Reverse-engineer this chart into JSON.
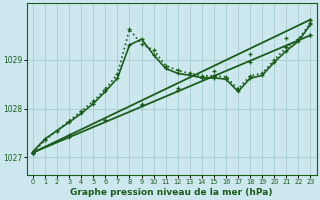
{
  "xlabel": "Graphe pression niveau de la mer (hPa)",
  "bg_color": "#cce8ee",
  "line_color": "#1a5c1a",
  "grid_color": "#a0c8c8",
  "ylim": [
    1026.65,
    1030.15
  ],
  "xlim": [
    -0.5,
    23.5
  ],
  "yticks": [
    1027,
    1028,
    1029
  ],
  "xticks": [
    0,
    1,
    2,
    3,
    4,
    5,
    6,
    7,
    8,
    9,
    10,
    11,
    12,
    13,
    14,
    15,
    16,
    17,
    18,
    19,
    20,
    21,
    22,
    23
  ],
  "series": [
    {
      "x": [
        0,
        1,
        2,
        3,
        4,
        5,
        6,
        7,
        8,
        9,
        10,
        11,
        12,
        13,
        14,
        15,
        16,
        17,
        18,
        19,
        20,
        21,
        22,
        23
      ],
      "y": [
        1027.1,
        1027.35,
        1027.55,
        1027.75,
        1027.95,
        1028.15,
        1028.4,
        1028.7,
        1029.62,
        1029.32,
        1029.2,
        1028.88,
        1028.78,
        1028.72,
        1028.67,
        1028.67,
        1028.65,
        1028.4,
        1028.67,
        1028.72,
        1029.0,
        1029.25,
        1029.42,
        1029.75
      ],
      "linestyle": "dotted",
      "linewidth": 1.2
    },
    {
      "x": [
        0,
        1,
        2,
        3,
        4,
        5,
        6,
        7,
        8,
        9,
        10,
        11,
        12,
        13,
        14,
        15,
        16,
        17,
        18,
        19,
        20,
        21,
        22,
        23
      ],
      "y": [
        1027.12,
        1027.38,
        1027.55,
        1027.72,
        1027.9,
        1028.1,
        1028.35,
        1028.62,
        1029.3,
        1029.42,
        1029.1,
        1028.82,
        1028.72,
        1028.68,
        1028.63,
        1028.63,
        1028.6,
        1028.35,
        1028.62,
        1028.68,
        1028.95,
        1029.18,
        1029.38,
        1029.72
      ],
      "linestyle": "solid",
      "linewidth": 1.2
    },
    {
      "x": [
        0,
        23
      ],
      "y": [
        1027.1,
        1029.82
      ],
      "linestyle": "solid",
      "linewidth": 1.3
    },
    {
      "x": [
        0,
        23
      ],
      "y": [
        1027.1,
        1029.5
      ],
      "linestyle": "solid",
      "linewidth": 1.3
    }
  ],
  "marker_series": [
    {
      "x": [
        0,
        3,
        6,
        9,
        12,
        15,
        18,
        21,
        23
      ],
      "y": [
        1027.1,
        1027.42,
        1027.76,
        1028.1,
        1028.43,
        1028.77,
        1029.11,
        1029.44,
        1029.82
      ]
    },
    {
      "x": [
        0,
        3,
        6,
        9,
        12,
        15,
        18,
        21,
        23
      ],
      "y": [
        1027.1,
        1027.45,
        1027.76,
        1028.07,
        1028.37,
        1028.67,
        1028.96,
        1029.26,
        1029.5
      ]
    }
  ]
}
